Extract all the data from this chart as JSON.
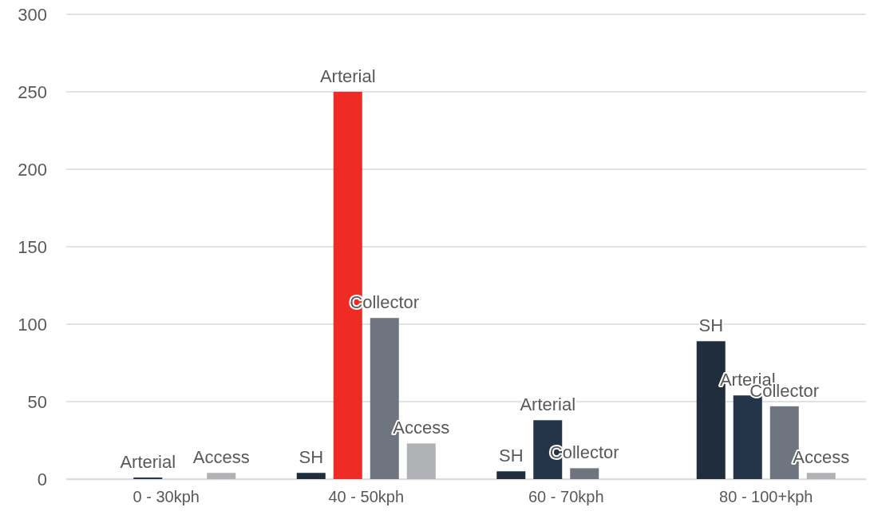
{
  "chart_data": {
    "type": "bar",
    "categories": [
      "0 - 30kph",
      "40 - 50kph",
      "60 - 70kph",
      "80 - 100+kph"
    ],
    "series": [
      {
        "color": "#1f2d3d",
        "values": [
          null,
          4,
          5,
          89
        ],
        "value_labels": [
          null,
          "SH",
          "SH",
          "SH"
        ]
      },
      {
        "color": "#243549",
        "colors": [
          null,
          "#ee2b24",
          null,
          null
        ],
        "values": [
          1,
          250,
          38,
          54
        ],
        "value_labels": [
          "Arterial",
          "Arterial",
          "Arterial",
          "Arterial"
        ]
      },
      {
        "color": "#6e757e",
        "values": [
          null,
          104,
          7,
          47
        ],
        "value_labels": [
          null,
          "Collector",
          "Collector",
          "Collector"
        ]
      },
      {
        "color": "#b1b2b5",
        "values": [
          4,
          23,
          null,
          4
        ],
        "value_labels": [
          "Access",
          "Access",
          null,
          "Access"
        ]
      }
    ],
    "ylim": [
      0,
      300
    ],
    "yticks": [
      0,
      50,
      100,
      150,
      200,
      250,
      300
    ],
    "grid": "y"
  }
}
